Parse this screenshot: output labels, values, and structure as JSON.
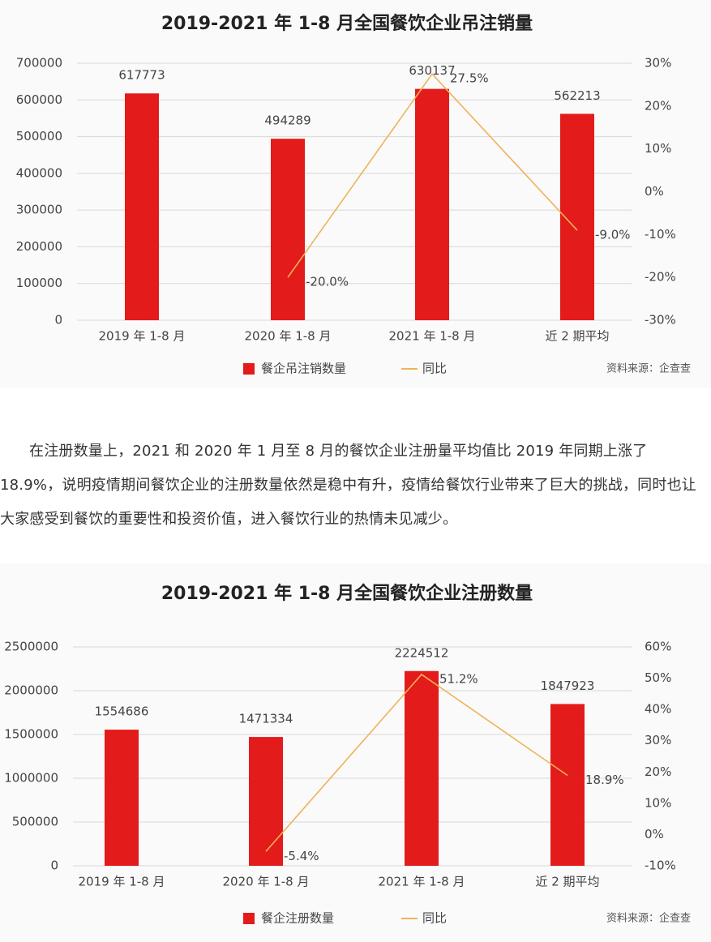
{
  "chart_data": [
    {
      "type": "bar",
      "title": "2019-2021 年 1-8 月全国餐饮企业吊注销量",
      "categories": [
        "2019 年 1-8 月",
        "2020 年 1-8 月",
        "2021 年 1-8 月",
        "近 2 期平均"
      ],
      "series": [
        {
          "name": "餐企吊注销数量",
          "color": "#e31b1b",
          "type": "bar",
          "values": [
            617773,
            494289,
            630137,
            562213
          ]
        },
        {
          "name": "同比",
          "color": "#f0b25a",
          "type": "line",
          "axis": "y2",
          "values": [
            null,
            -20.0,
            27.5,
            -9.0
          ],
          "value_labels": [
            null,
            "-20.0%",
            "27.5%",
            "-9.0%"
          ]
        }
      ],
      "ylim": [
        0,
        700000
      ],
      "yticks": [
        0,
        100000,
        200000,
        300000,
        400000,
        500000,
        600000,
        700000
      ],
      "y2lim": [
        -30,
        30
      ],
      "y2ticks": [
        {
          "value": -30,
          "label": "-30%"
        },
        {
          "value": -20,
          "label": "-20%"
        },
        {
          "value": -10,
          "label": "-10%"
        },
        {
          "value": 0,
          "label": "0%"
        },
        {
          "value": 10,
          "label": "10%"
        },
        {
          "value": 20,
          "label": "20%"
        },
        {
          "value": 30,
          "label": "30%"
        }
      ],
      "grid": true,
      "source": "资料来源：企查查"
    },
    {
      "type": "bar",
      "title": "2019-2021 年 1-8 月全国餐饮企业注册数量",
      "categories": [
        "2019 年 1-8 月",
        "2020 年 1-8 月",
        "2021 年 1-8 月",
        "近 2 期平均"
      ],
      "series": [
        {
          "name": "餐企注册数量",
          "color": "#e31b1b",
          "type": "bar",
          "values": [
            1554686,
            1471334,
            2224512,
            1847923
          ]
        },
        {
          "name": "同比",
          "color": "#f0b25a",
          "type": "line",
          "axis": "y2",
          "values": [
            null,
            -5.4,
            51.2,
            18.9
          ],
          "value_labels": [
            null,
            "-5.4%",
            "51.2%",
            "18.9%"
          ]
        }
      ],
      "ylim": [
        0,
        2500000
      ],
      "yticks": [
        0,
        500000,
        1000000,
        1500000,
        2000000,
        2500000
      ],
      "y2lim": [
        -10,
        60
      ],
      "y2ticks": [
        {
          "value": -10,
          "label": "-10%"
        },
        {
          "value": 0,
          "label": "0%"
        },
        {
          "value": 10,
          "label": "10%"
        },
        {
          "value": 20,
          "label": "20%"
        },
        {
          "value": 30,
          "label": "30%"
        },
        {
          "value": 40,
          "label": "40%"
        },
        {
          "value": 50,
          "label": "50%"
        },
        {
          "value": 60,
          "label": "60%"
        }
      ],
      "grid": true,
      "source": "资料来源：企查查"
    }
  ],
  "paragraph": "在注册数量上，2021 和 2020 年 1 月至 8 月的餐饮企业注册量平均值比 2019 年同期上涨了 18.9%，说明疫情期间餐饮企业的注册数量依然是稳中有升，疫情给餐饮行业带来了巨大的挑战，同时也让大家感受到餐饮的重要性和投资价值，进入餐饮行业的热情未见减少。"
}
